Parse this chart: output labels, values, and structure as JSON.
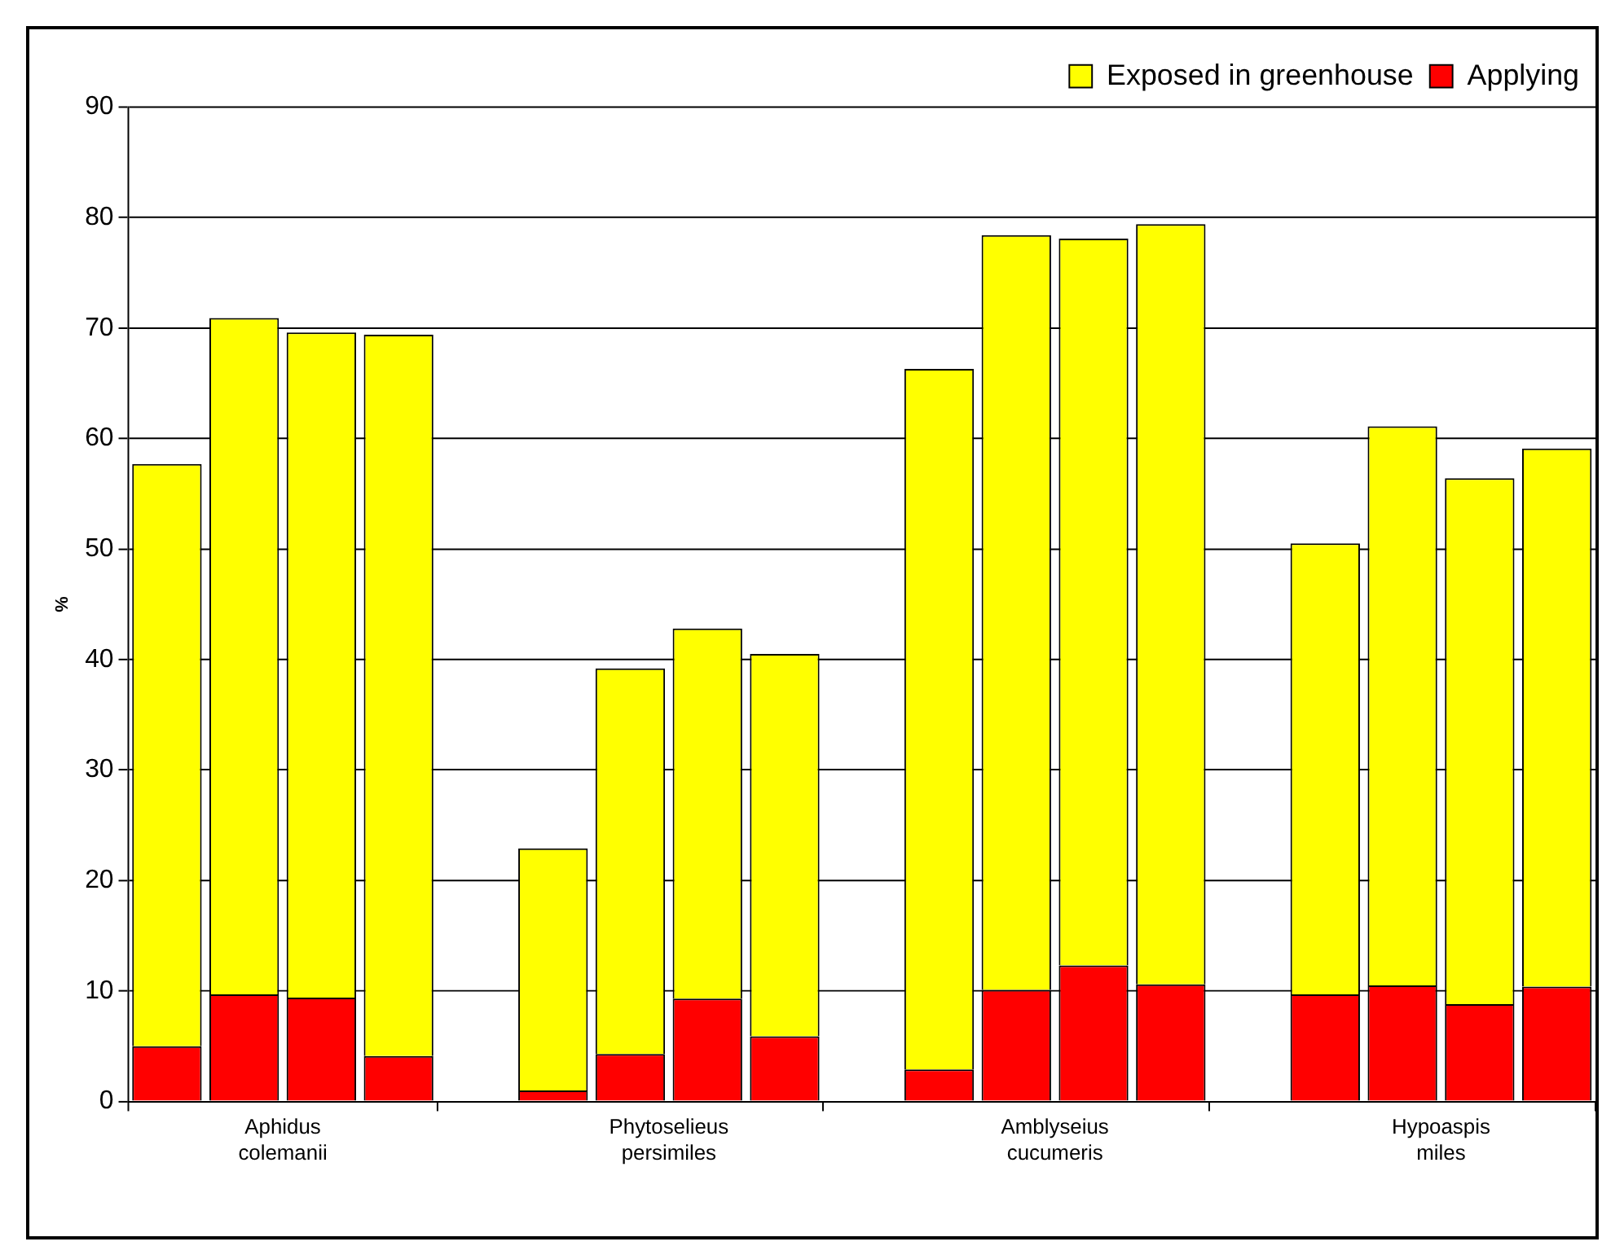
{
  "chart_data": {
    "type": "bar",
    "stacked": true,
    "ylabel": "%",
    "categories": [
      null,
      "Aphidus colemanii",
      null,
      null,
      null,
      null,
      "Phytoselieus persimiles",
      null,
      null,
      null,
      null,
      "Amblyseius cucumeris",
      null,
      null,
      null,
      null,
      "Hypoaspis miles",
      null,
      null
    ],
    "series": [
      {
        "name": "Applying",
        "color": "#ff0000",
        "values": [
          5,
          9.7,
          9.4,
          4.1,
          null,
          1,
          4.3,
          9.3,
          5.9,
          null,
          2.9,
          10.1,
          12.3,
          10.6,
          null,
          9.7,
          10.5,
          8.8,
          10.4
        ]
      },
      {
        "name": "Exposed in greenhouse",
        "color": "#ffff00",
        "values": [
          52.7,
          61.2,
          60.2,
          65.3,
          null,
          21.9,
          34.9,
          33.5,
          34.6,
          null,
          63.4,
          68.3,
          65.8,
          68.8,
          null,
          40.8,
          50.6,
          47.6,
          48.7
        ]
      }
    ],
    "ylim": [
      0,
      90
    ],
    "yticks": [
      0,
      10,
      20,
      30,
      40,
      50,
      60,
      70,
      80,
      90
    ],
    "grid": "y",
    "legend": "top right"
  }
}
